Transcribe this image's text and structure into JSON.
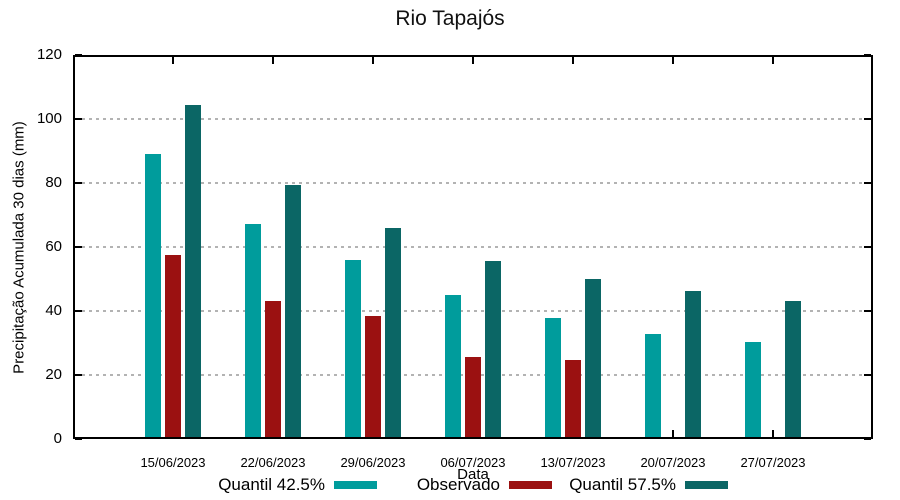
{
  "chart_data": {
    "type": "bar",
    "title": "Rio Tapajós",
    "xlabel": "Data",
    "ylabel": "Precipitação Acumulada 30 dias (mm)",
    "ylim": [
      0,
      120
    ],
    "yticks": [
      0,
      20,
      40,
      60,
      80,
      100,
      120
    ],
    "grid": "horizontal-dotted-at-20-40-60-80-100",
    "legend_position": "bottom-center",
    "categories": [
      "15/06/2023",
      "22/06/2023",
      "29/06/2023",
      "06/07/2023",
      "13/07/2023",
      "20/07/2023",
      "27/07/2023"
    ],
    "series": [
      {
        "name": "Quantil 42.5%",
        "color": "#009C9C",
        "values": [
          88.3,
          66.5,
          55.3,
          44.5,
          37.1,
          32.3,
          29.8
        ]
      },
      {
        "name": "Observado",
        "color": "#9B1111",
        "values": [
          57.0,
          42.5,
          37.9,
          25.1,
          24.0,
          null,
          null
        ]
      },
      {
        "name": "Quantil 57.5%",
        "color": "#0B6665",
        "values": [
          103.7,
          78.8,
          65.3,
          55.1,
          49.4,
          45.6,
          42.4
        ]
      }
    ]
  },
  "colors": {
    "axis": "#000000",
    "grid": "#b3b3b3",
    "background": "#ffffff"
  }
}
